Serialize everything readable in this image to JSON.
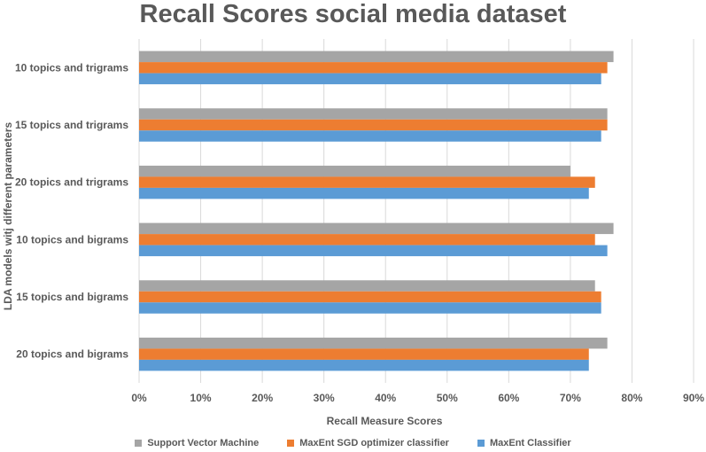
{
  "chart_data": {
    "type": "bar",
    "orientation": "horizontal",
    "title": "Recall Scores social media dataset",
    "xlabel": "Recall Measure Scores",
    "ylabel": "LDA models witj different parameters",
    "xlim": [
      0,
      90
    ],
    "x_ticks": [
      "0%",
      "10%",
      "20%",
      "30%",
      "40%",
      "50%",
      "60%",
      "70%",
      "80%",
      "90%"
    ],
    "x_tick_values": [
      0,
      10,
      20,
      30,
      40,
      50,
      60,
      70,
      80,
      90
    ],
    "categories": [
      "10 topics and trigrams",
      "15 topics and trigrams",
      "20 topics and trigrams",
      "10 topics and bigrams",
      "15 topics and bigrams",
      "20 topics and bigrams"
    ],
    "series": [
      {
        "name": "Support Vector Machine",
        "color": "#a5a5a5",
        "values": [
          77,
          76,
          70,
          77,
          74,
          76
        ]
      },
      {
        "name": "MaxEnt SGD optimizer classifier",
        "color": "#ed7d31",
        "values": [
          76,
          76,
          74,
          74,
          75,
          73
        ]
      },
      {
        "name": "MaxEnt Classifier",
        "color": "#5b9bd5",
        "values": [
          75,
          75,
          73,
          76,
          75,
          73
        ]
      }
    ],
    "grid": true,
    "legend_position": "bottom"
  }
}
